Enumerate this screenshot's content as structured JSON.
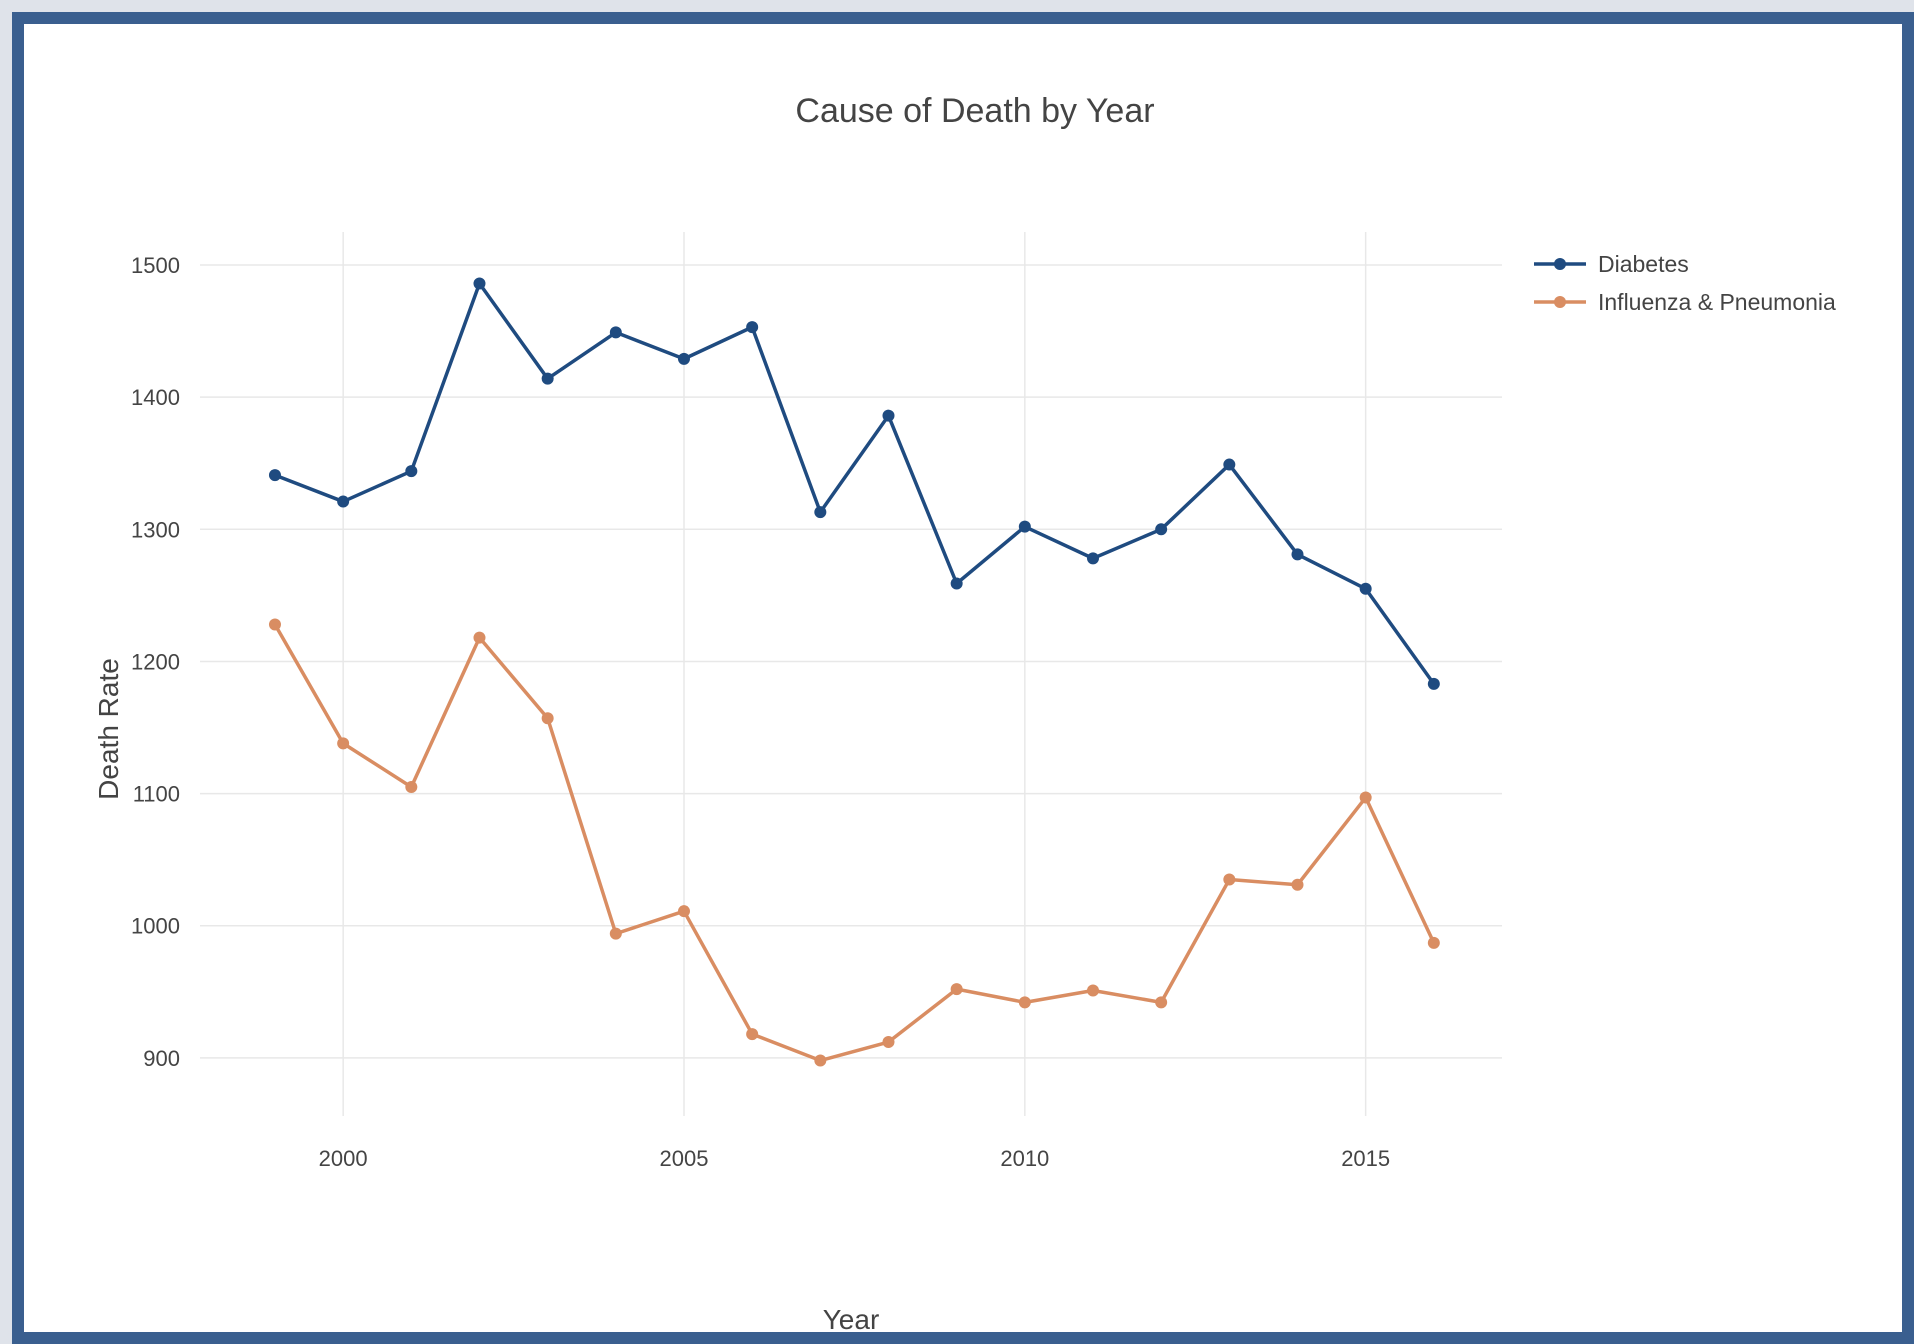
{
  "chart_data": {
    "type": "line",
    "title": "Cause of Death by Year",
    "xlabel": "Year",
    "ylabel": "Death Rate",
    "xlim": [
      1997.9,
      2017
    ],
    "ylim": [
      856,
      1525
    ],
    "x_ticks": [
      "2000",
      "2005",
      "2010",
      "2015"
    ],
    "y_ticks": [
      "900",
      "1000",
      "1100",
      "1200",
      "1300",
      "1400",
      "1500"
    ],
    "grid": true,
    "legend_position": "top-right",
    "x": [
      1999,
      2000,
      2001,
      2002,
      2003,
      2004,
      2005,
      2006,
      2007,
      2008,
      2009,
      2010,
      2011,
      2012,
      2013,
      2014,
      2015,
      2016
    ],
    "series": [
      {
        "name": "Diabetes",
        "color": "#1f4b80",
        "values": [
          1341,
          1321,
          1344,
          1486,
          1414,
          1449,
          1429,
          1453,
          1313,
          1386,
          1259,
          1302,
          1278,
          1300,
          1349,
          1281,
          1255,
          1183
        ]
      },
      {
        "name": "Influenza & Pneumonia",
        "color": "#d98d62",
        "values": [
          1228,
          1138,
          1105,
          1218,
          1157,
          994,
          1011,
          918,
          898,
          912,
          952,
          942,
          951,
          942,
          1035,
          1031,
          1097,
          987
        ]
      }
    ]
  }
}
